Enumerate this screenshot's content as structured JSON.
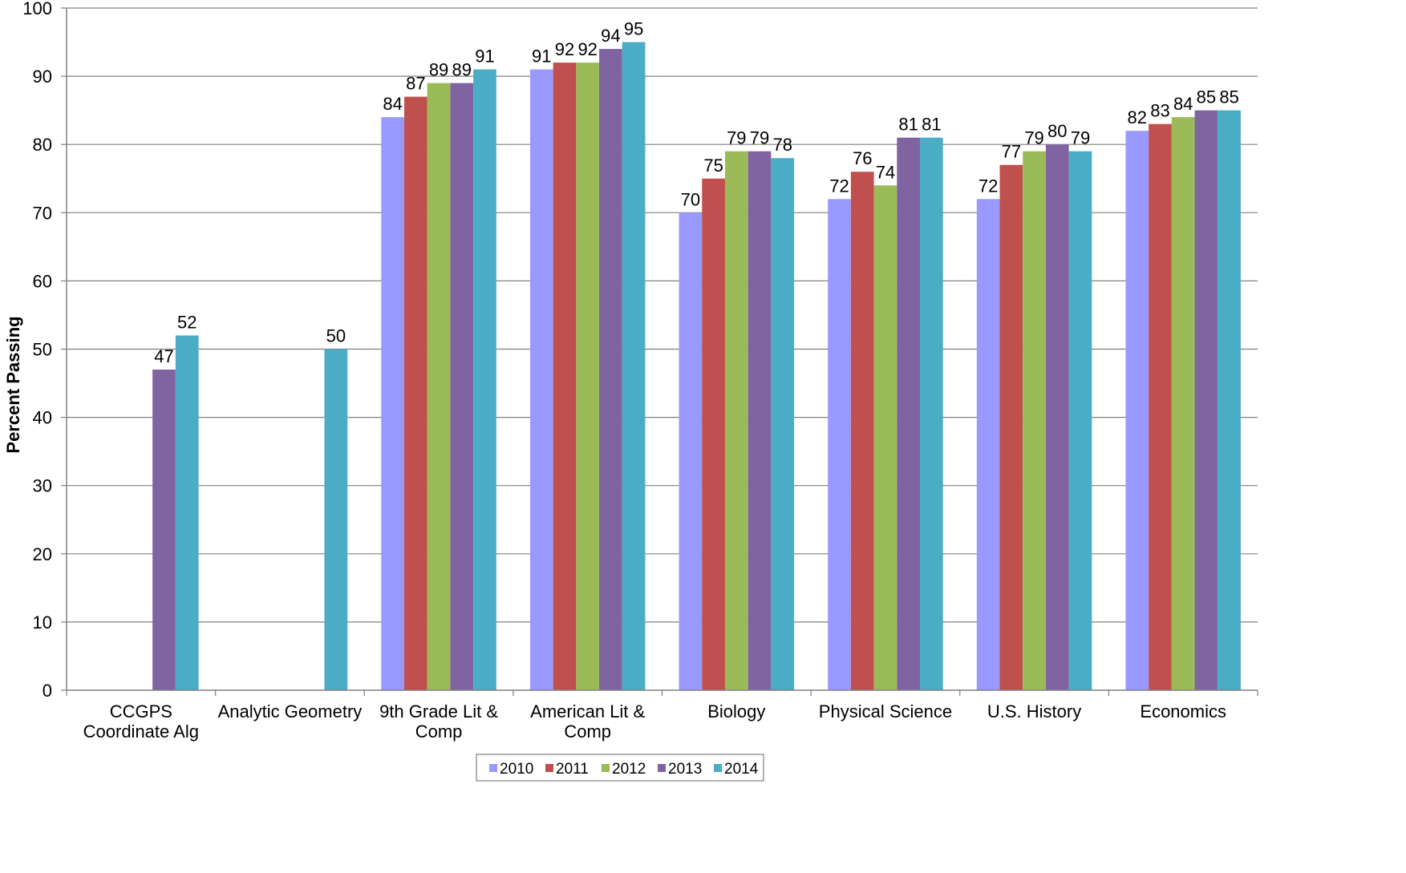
{
  "chart_data": {
    "type": "bar",
    "ylabel": "Percent Passing",
    "xlabel": "",
    "ylim": [
      0,
      100
    ],
    "yticks": [
      0,
      10,
      20,
      30,
      40,
      50,
      60,
      70,
      80,
      90,
      100
    ],
    "grid": true,
    "legend_position": "bottom",
    "categories": [
      [
        "CCGPS",
        "Coordinate Alg"
      ],
      [
        "Analytic Geometry"
      ],
      [
        "9th Grade Lit &",
        "Comp"
      ],
      [
        "American Lit &",
        "Comp"
      ],
      [
        "Biology"
      ],
      [
        "Physical Science"
      ],
      [
        "U.S. History"
      ],
      [
        "Economics"
      ]
    ],
    "series": [
      {
        "name": "2010",
        "color": "#9999ff",
        "values": [
          null,
          null,
          84,
          91,
          70,
          72,
          72,
          82
        ]
      },
      {
        "name": "2011",
        "color": "#c0504d",
        "values": [
          null,
          null,
          87,
          92,
          75,
          76,
          77,
          83
        ]
      },
      {
        "name": "2012",
        "color": "#9bbb59",
        "values": [
          null,
          null,
          89,
          92,
          79,
          74,
          79,
          84
        ]
      },
      {
        "name": "2013",
        "color": "#8064a2",
        "values": [
          47,
          null,
          89,
          94,
          79,
          81,
          80,
          85
        ]
      },
      {
        "name": "2014",
        "color": "#4bacc6",
        "values": [
          52,
          50,
          91,
          95,
          78,
          81,
          79,
          85
        ]
      }
    ]
  }
}
